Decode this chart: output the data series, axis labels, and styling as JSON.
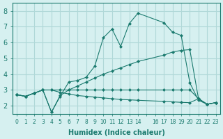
{
  "xlabel": "Humidex (Indice chaleur)",
  "ylabel": "",
  "bg_color": "#d6f0f0",
  "grid_color": "#b0d8d8",
  "line_color": "#1a7a6e",
  "xlim": [
    -0.5,
    23.5
  ],
  "ylim": [
    1.5,
    8.5
  ],
  "yticks": [
    2,
    3,
    4,
    5,
    6,
    7,
    8
  ],
  "xticks": [
    0,
    1,
    2,
    3,
    4,
    5,
    6,
    7,
    8,
    9,
    10,
    11,
    12,
    13,
    14,
    15,
    16,
    17,
    18,
    19,
    20,
    21,
    22,
    23
  ],
  "xtick_labels": [
    "0",
    "1",
    "2",
    "3",
    "4",
    "5",
    "6",
    "7",
    "8",
    "9",
    "10",
    "11",
    "12",
    "13",
    "14",
    "",
    "16",
    "17",
    "18",
    "19",
    "20",
    "21",
    "22",
    "23"
  ],
  "series": [
    {
      "x": [
        0,
        1,
        2,
        3,
        4,
        5,
        6,
        7,
        8,
        9,
        10,
        11,
        12,
        13,
        14,
        17,
        18,
        19,
        20,
        21,
        22,
        23
      ],
      "y": [
        2.7,
        2.6,
        2.8,
        3.0,
        1.6,
        2.6,
        3.5,
        3.6,
        3.8,
        4.5,
        6.3,
        6.85,
        5.75,
        7.2,
        7.85,
        7.25,
        6.65,
        6.45,
        3.45,
        2.35,
        2.1,
        2.2
      ]
    },
    {
      "x": [
        0,
        1,
        2,
        3,
        4,
        5,
        6,
        7,
        8,
        9,
        10,
        11,
        12,
        13,
        14,
        17,
        18,
        19,
        20,
        21,
        22,
        23
      ],
      "y": [
        2.7,
        2.6,
        2.8,
        3.0,
        1.6,
        2.65,
        3.0,
        3.25,
        3.5,
        3.75,
        4.0,
        4.2,
        4.4,
        4.6,
        4.8,
        5.2,
        5.4,
        5.5,
        5.55,
        2.45,
        2.1,
        2.2
      ]
    },
    {
      "x": [
        0,
        1,
        2,
        3,
        4,
        5,
        6,
        7,
        8,
        9,
        10,
        11,
        12,
        13,
        14,
        17,
        18,
        19,
        20,
        21,
        22,
        23
      ],
      "y": [
        2.7,
        2.6,
        2.8,
        3.0,
        3.0,
        3.0,
        3.0,
        3.0,
        3.0,
        3.0,
        3.0,
        3.0,
        3.0,
        3.0,
        3.0,
        3.0,
        3.0,
        3.0,
        3.0,
        2.45,
        2.1,
        2.2
      ]
    },
    {
      "x": [
        0,
        1,
        2,
        3,
        4,
        5,
        6,
        7,
        8,
        9,
        10,
        11,
        12,
        13,
        14,
        17,
        18,
        19,
        20,
        21,
        22,
        23
      ],
      "y": [
        2.7,
        2.6,
        2.8,
        3.0,
        3.0,
        2.85,
        2.75,
        2.65,
        2.6,
        2.55,
        2.5,
        2.45,
        2.4,
        2.38,
        2.35,
        2.28,
        2.25,
        2.22,
        2.2,
        2.45,
        2.1,
        2.2
      ]
    }
  ]
}
